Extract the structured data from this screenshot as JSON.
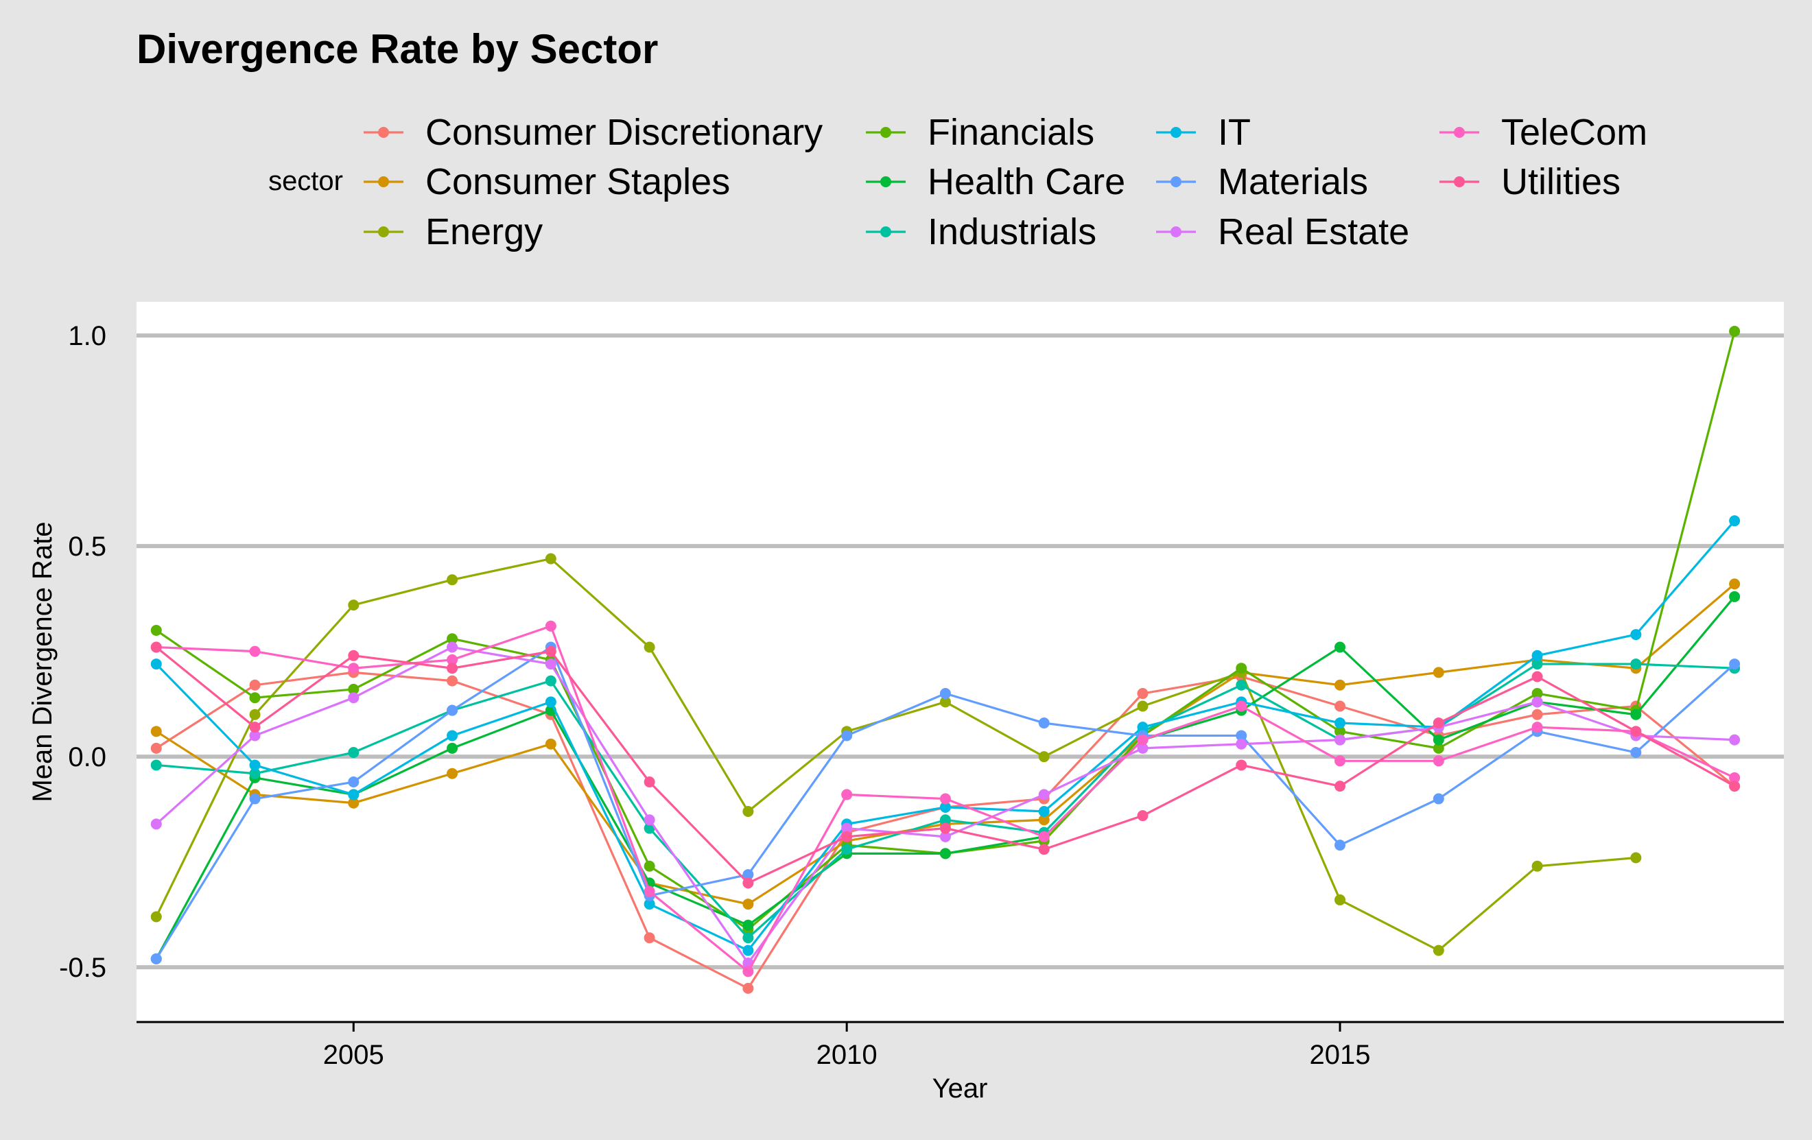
{
  "chart_data": {
    "type": "line",
    "title": "Divergence Rate by Sector",
    "xlabel": "Year",
    "ylabel": "Mean Divergence Rate",
    "legend_title": "sector",
    "legend_position": "top",
    "grid": "horizontal major",
    "xlim": [
      2002.8,
      2019.5
    ],
    "ylim": [
      -0.63,
      1.08
    ],
    "x_ticks": [
      2005,
      2010,
      2015
    ],
    "y_ticks": [
      -0.5,
      0.0,
      0.5,
      1.0
    ],
    "y_tick_labels": [
      "-0.5",
      "0.0",
      "0.5",
      "1.0"
    ],
    "x": [
      2003,
      2004,
      2005,
      2006,
      2007,
      2008,
      2009,
      2010,
      2011,
      2012,
      2013,
      2014,
      2015,
      2016,
      2017,
      2018,
      2019
    ],
    "series": [
      {
        "name": "Consumer Discretionary",
        "color": "#F8766D",
        "values": [
          0.02,
          0.17,
          0.2,
          0.18,
          0.1,
          -0.43,
          -0.55,
          -0.18,
          -0.12,
          -0.1,
          0.15,
          0.19,
          0.12,
          0.05,
          0.1,
          0.12,
          -0.07
        ]
      },
      {
        "name": "Consumer Staples",
        "color": "#D39200",
        "values": [
          0.06,
          -0.09,
          -0.11,
          -0.04,
          0.03,
          -0.3,
          -0.35,
          -0.2,
          -0.16,
          -0.15,
          0.05,
          0.2,
          0.17,
          0.2,
          0.23,
          0.21,
          0.41
        ]
      },
      {
        "name": "Energy",
        "color": "#93AA00",
        "values": [
          -0.38,
          0.1,
          0.36,
          0.42,
          0.47,
          0.26,
          -0.13,
          0.06,
          0.13,
          0.0,
          0.12,
          0.2,
          -0.34,
          -0.46,
          -0.26,
          -0.24,
          null
        ]
      },
      {
        "name": "Financials",
        "color": "#5BB300",
        "values": [
          0.3,
          0.14,
          0.16,
          0.28,
          0.23,
          -0.26,
          -0.41,
          -0.21,
          -0.23,
          -0.2,
          0.05,
          0.21,
          0.06,
          0.02,
          0.15,
          0.11,
          1.01
        ]
      },
      {
        "name": "Health Care",
        "color": "#00BA38",
        "values": [
          -0.48,
          -0.05,
          -0.09,
          0.02,
          0.11,
          -0.3,
          -0.4,
          -0.23,
          -0.23,
          -0.19,
          0.04,
          0.11,
          0.26,
          0.04,
          0.13,
          0.1,
          0.38
        ]
      },
      {
        "name": "Industrials",
        "color": "#00C19F",
        "values": [
          -0.02,
          -0.04,
          0.01,
          0.11,
          0.18,
          -0.17,
          -0.43,
          -0.22,
          -0.15,
          -0.18,
          0.06,
          0.17,
          0.04,
          0.07,
          0.22,
          0.22,
          0.21
        ]
      },
      {
        "name": "IT",
        "color": "#00B9E3",
        "values": [
          0.22,
          -0.02,
          -0.09,
          0.05,
          0.13,
          -0.35,
          -0.46,
          -0.16,
          -0.12,
          -0.13,
          0.07,
          0.13,
          0.08,
          0.07,
          0.24,
          0.29,
          0.56
        ]
      },
      {
        "name": "Materials",
        "color": "#619CFF",
        "values": [
          -0.48,
          -0.1,
          -0.06,
          0.11,
          0.26,
          -0.33,
          -0.28,
          0.05,
          0.15,
          0.08,
          0.05,
          0.05,
          -0.21,
          -0.1,
          0.06,
          0.01,
          0.22
        ]
      },
      {
        "name": "Real Estate",
        "color": "#DB72FB",
        "values": [
          -0.16,
          0.05,
          0.14,
          0.26,
          0.22,
          -0.15,
          -0.49,
          -0.17,
          -0.19,
          -0.09,
          0.02,
          0.03,
          0.04,
          0.07,
          0.13,
          0.05,
          0.04
        ]
      },
      {
        "name": "TeleCom",
        "color": "#FF61C3",
        "values": [
          0.26,
          0.25,
          0.21,
          0.23,
          0.31,
          -0.32,
          -0.51,
          -0.09,
          -0.1,
          -0.19,
          0.04,
          0.12,
          -0.01,
          -0.01,
          0.07,
          0.06,
          -0.05
        ]
      },
      {
        "name": "Utilities",
        "color": "#FD5796",
        "values": [
          0.26,
          0.07,
          0.24,
          0.21,
          0.25,
          -0.06,
          -0.3,
          -0.19,
          -0.17,
          -0.22,
          -0.14,
          -0.02,
          -0.07,
          0.08,
          0.19,
          0.06,
          -0.07
        ]
      }
    ]
  }
}
